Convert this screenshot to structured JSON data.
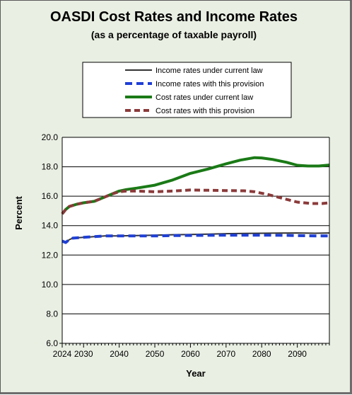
{
  "chart_data": {
    "type": "line",
    "title": "OASDI Cost Rates and Income Rates",
    "subtitle": "(as a percentage of taxable payroll)",
    "xlabel": "Year",
    "ylabel": "Percent",
    "xlim": [
      2024,
      2099
    ],
    "ylim": [
      6.0,
      20.0
    ],
    "x_ticks": [
      "2024",
      "2030",
      "2040",
      "2050",
      "2060",
      "2070",
      "2080",
      "2090"
    ],
    "y_ticks": [
      "6.0",
      "8.0",
      "10.0",
      "12.0",
      "14.0",
      "16.0",
      "18.0",
      "20.0"
    ],
    "grid": "horizontal",
    "legend_position": "top",
    "series": [
      {
        "name": "Income rates under current law",
        "color": "#333333",
        "style": "solid",
        "x": [
          2024,
          2025,
          2026,
          2027,
          2030,
          2033,
          2036,
          2040,
          2045,
          2050,
          2055,
          2060,
          2065,
          2070,
          2075,
          2080,
          2085,
          2090,
          2095,
          2099
        ],
        "y": [
          12.95,
          12.85,
          13.05,
          13.15,
          13.2,
          13.25,
          13.3,
          13.3,
          13.32,
          13.35,
          13.38,
          13.4,
          13.42,
          13.45,
          13.47,
          13.48,
          13.49,
          13.5,
          13.48,
          13.5
        ]
      },
      {
        "name": "Income rates with this provision",
        "color": "#1f3fd6",
        "style": "dashed",
        "x": [
          2024,
          2025,
          2026,
          2027,
          2030,
          2033,
          2036,
          2040,
          2045,
          2050,
          2055,
          2060,
          2065,
          2070,
          2075,
          2080,
          2085,
          2090,
          2095,
          2099
        ],
        "y": [
          12.95,
          12.85,
          13.05,
          13.15,
          13.2,
          13.25,
          13.3,
          13.3,
          13.3,
          13.3,
          13.32,
          13.33,
          13.34,
          13.35,
          13.35,
          13.35,
          13.34,
          13.32,
          13.3,
          13.3
        ]
      },
      {
        "name": "Cost rates under current law",
        "color": "#1a7a16",
        "style": "solid",
        "x": [
          2024,
          2025,
          2026,
          2028,
          2030,
          2033,
          2036,
          2038,
          2040,
          2042,
          2045,
          2050,
          2055,
          2060,
          2065,
          2070,
          2074,
          2078,
          2080,
          2083,
          2087,
          2090,
          2093,
          2096,
          2099
        ],
        "y": [
          14.8,
          15.1,
          15.3,
          15.45,
          15.55,
          15.65,
          15.95,
          16.15,
          16.35,
          16.45,
          16.55,
          16.75,
          17.1,
          17.55,
          17.85,
          18.2,
          18.45,
          18.62,
          18.6,
          18.5,
          18.3,
          18.1,
          18.05,
          18.05,
          18.12
        ]
      },
      {
        "name": "Cost rates with this provision",
        "color": "#8b3a3a",
        "style": "dashed",
        "x": [
          2024,
          2025,
          2026,
          2028,
          2030,
          2033,
          2036,
          2038,
          2040,
          2042,
          2045,
          2050,
          2055,
          2060,
          2065,
          2070,
          2075,
          2078,
          2082,
          2086,
          2090,
          2094,
          2097,
          2099
        ],
        "y": [
          14.8,
          15.1,
          15.3,
          15.45,
          15.55,
          15.65,
          15.95,
          16.15,
          16.3,
          16.35,
          16.35,
          16.3,
          16.35,
          16.42,
          16.4,
          16.38,
          16.37,
          16.3,
          16.1,
          15.85,
          15.6,
          15.5,
          15.5,
          15.55
        ]
      }
    ]
  }
}
